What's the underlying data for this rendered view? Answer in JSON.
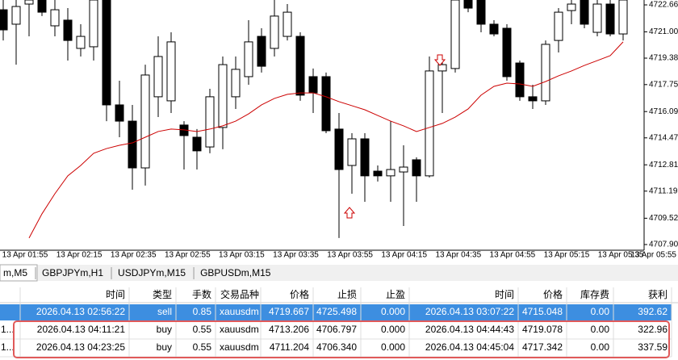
{
  "chart_data": {
    "type": "candlestick",
    "open": [
      4722.36,
      4721.47,
      4722.71,
      4722.96,
      4721.37,
      4721.72,
      4719.98,
      4720.08,
      4722.96,
      4716.5,
      4715.5,
      4712.62,
      4717.0,
      4716.75,
      4715.26,
      4714.51,
      4713.91,
      4715.11,
      4717.0,
      4718.24,
      4720.72,
      4719.98,
      4720.72,
      4720.72,
      4718.24,
      4718.24,
      4715.01,
      4712.77,
      4714.41,
      4712.42,
      4712.13,
      4712.37,
      4713.12,
      4712.13,
      4718.59,
      4718.74,
      4722.96,
      4722.96,
      4721.47,
      4721.22,
      4719.08,
      4717.0,
      4716.75,
      4720.47,
      4722.31,
      4722.96,
      4720.97,
      4722.71,
      4720.87
    ],
    "high": [
      4722.96,
      4722.96,
      4722.96,
      4722.96,
      4722.96,
      4722.46,
      4721.47,
      4722.96,
      4722.96,
      4717.99,
      4716.5,
      4718.98,
      4720.72,
      4720.97,
      4715.5,
      4715.01,
      4717.49,
      4719.48,
      4719.48,
      4721.72,
      4721.22,
      4722.96,
      4722.71,
      4720.97,
      4718.74,
      4718.49,
      4716.0,
      4714.76,
      4714.76,
      4712.77,
      4715.5,
      4714.01,
      4713.27,
      4719.48,
      4719.48,
      4722.96,
      4722.96,
      4722.96,
      4721.72,
      4721.47,
      4719.23,
      4717.74,
      4720.47,
      4722.46,
      4722.96,
      4722.96,
      4722.96,
      4722.96,
      4722.96
    ],
    "low": [
      4720.47,
      4718.98,
      4720.72,
      4721.97,
      4720.72,
      4719.23,
      4719.48,
      4719.23,
      4715.5,
      4714.51,
      4711.28,
      4711.53,
      4715.75,
      4716.0,
      4712.52,
      4712.52,
      4713.52,
      4713.77,
      4716.25,
      4717.74,
      4718.49,
      4719.48,
      4720.47,
      4716.75,
      4716.0,
      4714.76,
      4708.3,
      4711.03,
      4710.53,
      4711.78,
      4710.53,
      4709.04,
      4710.53,
      4712.03,
      4716.0,
      4718.49,
      4722.21,
      4720.97,
      4720.72,
      4717.99,
      4716.75,
      4716.25,
      4716.5,
      4719.73,
      4721.47,
      4721.22,
      4720.72,
      4720.72,
      4720.47
    ],
    "close": [
      4721.12,
      4722.56,
      4722.96,
      4722.21,
      4722.36,
      4720.47,
      4720.72,
      4722.96,
      4716.5,
      4715.5,
      4712.62,
      4718.34,
      4719.48,
      4720.38,
      4714.61,
      4713.67,
      4717.0,
      4718.98,
      4718.69,
      4720.38,
      4718.88,
      4721.97,
      4722.21,
      4717.1,
      4717.24,
      4714.91,
      4712.52,
      4714.41,
      4712.13,
      4712.13,
      4712.52,
      4712.67,
      4712.13,
      4718.59,
      4718.98,
      4722.96,
      4722.46,
      4721.47,
      4720.87,
      4718.24,
      4717.0,
      4716.75,
      4720.23,
      4722.21,
      4722.71,
      4721.47,
      4722.71,
      4720.87,
      4722.96
    ],
    "ma": {
      "color": "#cc0000",
      "values": [
        null,
        null,
        4708.3,
        4709.79,
        4711.03,
        4712.13,
        4712.77,
        4713.52,
        4713.81,
        4714.01,
        4714.16,
        4714.51,
        4714.86,
        4715.01,
        4714.96,
        4714.86,
        4715.01,
        4715.21,
        4715.5,
        4715.95,
        4716.5,
        4716.9,
        4717.15,
        4717.24,
        4717.24,
        4717.0,
        4716.7,
        4716.45,
        4716.2,
        4715.85,
        4715.5,
        4715.21,
        4714.86,
        4715.11,
        4715.36,
        4715.75,
        4716.25,
        4717.1,
        4717.64,
        4717.84,
        4717.79,
        4717.64,
        4717.94,
        4718.29,
        4718.59,
        4718.93,
        4719.23,
        4719.53,
        4720.38
      ]
    },
    "ylim": [
      4707.55,
      4722.96
    ],
    "yticks": [
      4722.66,
      {
        "value": 4721.0,
        "label": "4721.00"
      },
      4719.38,
      4717.75,
      4716.09,
      4714.47,
      4712.81,
      4711.19,
      4709.52,
      {
        "value": 4707.9,
        "label": "4707.90"
      }
    ],
    "xlabels": [
      "13 Apr 01:55",
      "13 Apr 02:15",
      "13 Apr 02:35",
      "13 Apr 02:55",
      "13 Apr 03:15",
      "13 Apr 03:35",
      "13 Apr 03:55",
      "13 Apr 04:15",
      "13 Apr 04:35",
      "13 Apr 04:55",
      "13 Apr 05:15",
      "13 Apr 05:35",
      "13 Apr 05:55"
    ]
  },
  "tabs": [
    "m,M5",
    "GBPJPYm,H1",
    "USDJPYm,M15",
    "GBPUSDm,M15"
  ],
  "table": {
    "headers": [
      "时间",
      "类型",
      "手数",
      "交易品种",
      "价格",
      "止损",
      "止盈",
      "时间",
      "价格",
      "库存费",
      "获利"
    ],
    "prefixes": [
      null,
      "1...",
      "1..."
    ],
    "rows": [
      [
        "2026.04.13 02:56:22",
        "sell",
        "0.85",
        "xauusdm",
        "4719.667",
        "4725.498",
        "0.000",
        "2026.04.13 03:07:22",
        "4715.048",
        "0.00",
        "392.62"
      ],
      [
        "2026.04.13 04:11:21",
        "buy",
        "0.55",
        "xauusdm",
        "4713.206",
        "4706.797",
        "0.000",
        "2026.04.13 04:44:43",
        "4719.078",
        "0.00",
        "322.96"
      ],
      [
        "2026.04.13 04:23:25",
        "buy",
        "0.55",
        "xauusdm",
        "4711.204",
        "4706.340",
        "0.000",
        "2026.04.13 04:45:04",
        "4717.342",
        "0.00",
        "337.59"
      ]
    ]
  }
}
